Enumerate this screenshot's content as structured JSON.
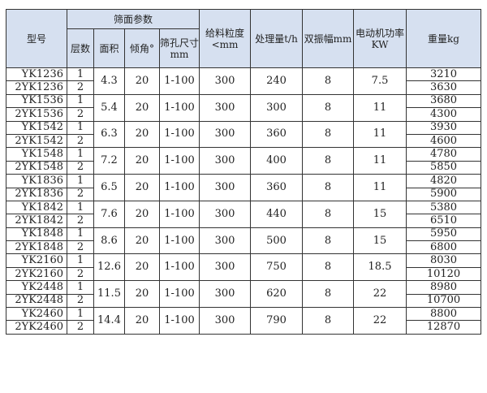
{
  "headers": {
    "model": "型号",
    "screen_params": "筛面参数",
    "layers": "层数",
    "area": "面积",
    "angle": "倾角°",
    "aperture": "筛孔尺寸mm",
    "feed_size": "给料粒度<mm",
    "capacity": "处理量t/h",
    "amplitude": "双振幅mm",
    "motor_power": "电动机功率KW",
    "weight": "重量kg"
  },
  "groups": [
    {
      "models": [
        "YK1236",
        "2YK1236"
      ],
      "layers": [
        "1",
        "2"
      ],
      "area": "4.3",
      "angle": "20",
      "aperture": "1-100",
      "feed": "300",
      "capacity": "240",
      "amplitude": "8",
      "power": "7.5",
      "weights": [
        "3210",
        "3630"
      ]
    },
    {
      "models": [
        "YK1536",
        "2YK1536"
      ],
      "layers": [
        "1",
        "2"
      ],
      "area": "5.4",
      "angle": "20",
      "aperture": "1-100",
      "feed": "300",
      "capacity": "300",
      "amplitude": "8",
      "power": "11",
      "weights": [
        "3680",
        "4300"
      ]
    },
    {
      "models": [
        "YK1542",
        "2YK1542"
      ],
      "layers": [
        "1",
        "2"
      ],
      "area": "6.3",
      "angle": "20",
      "aperture": "1-100",
      "feed": "300",
      "capacity": "360",
      "amplitude": "8",
      "power": "11",
      "weights": [
        "3930",
        "4600"
      ]
    },
    {
      "models": [
        "YK1548",
        "2YK1548"
      ],
      "layers": [
        "1",
        "2"
      ],
      "area": "7.2",
      "angle": "20",
      "aperture": "1-100",
      "feed": "300",
      "capacity": "400",
      "amplitude": "8",
      "power": "11",
      "weights": [
        "4780",
        "5850"
      ]
    },
    {
      "models": [
        "YK1836",
        "2YK1836"
      ],
      "layers": [
        "1",
        "2"
      ],
      "area": "6.5",
      "angle": "20",
      "aperture": "1-100",
      "feed": "300",
      "capacity": "360",
      "amplitude": "8",
      "power": "11",
      "weights": [
        "4820",
        "5900"
      ]
    },
    {
      "models": [
        "YK1842",
        "2YK1842"
      ],
      "layers": [
        "1",
        "2"
      ],
      "area": "7.6",
      "angle": "20",
      "aperture": "1-100",
      "feed": "300",
      "capacity": "440",
      "amplitude": "8",
      "power": "15",
      "weights": [
        "5380",
        "6510"
      ]
    },
    {
      "models": [
        "YK1848",
        "2YK1848"
      ],
      "layers": [
        "1",
        "2"
      ],
      "area": "8.6",
      "angle": "20",
      "aperture": "1-100",
      "feed": "300",
      "capacity": "500",
      "amplitude": "8",
      "power": "15",
      "weights": [
        "5950",
        "6800"
      ]
    },
    {
      "models": [
        "YK2160",
        "2YK2160"
      ],
      "layers": [
        "1",
        "2"
      ],
      "area": "12.6",
      "angle": "20",
      "aperture": "1-100",
      "feed": "300",
      "capacity": "750",
      "amplitude": "8",
      "power": "18.5",
      "weights": [
        "8030",
        "10120"
      ]
    },
    {
      "models": [
        "YK2448",
        "2YK2448"
      ],
      "layers": [
        "1",
        "2"
      ],
      "area": "11.5",
      "angle": "20",
      "aperture": "1-100",
      "feed": "300",
      "capacity": "620",
      "amplitude": "8",
      "power": "22",
      "weights": [
        "8980",
        "10700"
      ]
    },
    {
      "models": [
        "YK2460",
        "2YK2460"
      ],
      "layers": [
        "1",
        "2"
      ],
      "area": "14.4",
      "angle": "20",
      "aperture": "1-100",
      "feed": "300",
      "capacity": "790",
      "amplitude": "8",
      "power": "22",
      "weights": [
        "8800",
        "12870"
      ]
    }
  ]
}
